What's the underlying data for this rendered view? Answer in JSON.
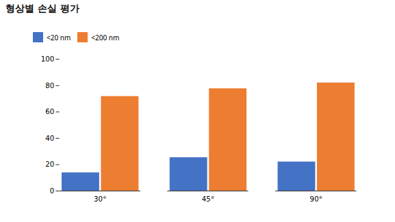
{
  "chart_data": {
    "type": "bar",
    "title": "형상별 손실 평가",
    "categories": [
      "30°",
      "45°",
      "90°"
    ],
    "series": [
      {
        "name": "<20 nm",
        "color": "#4472C4",
        "values": [
          13.9,
          25.4,
          22.1
        ]
      },
      {
        "name": "<200 nm",
        "color": "#ED7D31",
        "values": [
          71.8,
          77.7,
          82.1
        ]
      }
    ],
    "ylim": [
      0,
      100
    ],
    "yticks": [
      0,
      20,
      40,
      60,
      80,
      100
    ],
    "grid": false,
    "legend": "upper left"
  }
}
